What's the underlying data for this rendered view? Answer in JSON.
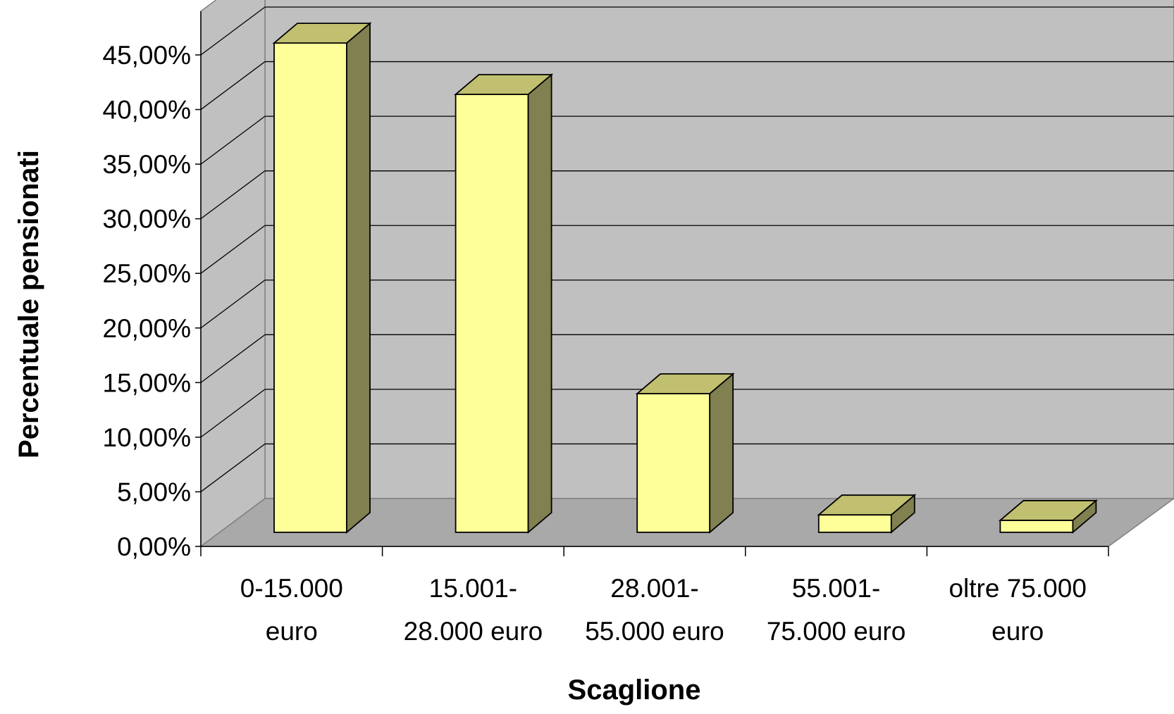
{
  "chart_data": {
    "type": "bar",
    "title": "",
    "xlabel": "Scaglione",
    "ylabel": "Percentuale pensionati",
    "categories": [
      [
        "0-15.000",
        "euro"
      ],
      [
        "15.001-",
        "28.000 euro"
      ],
      [
        "28.001-",
        "55.000 euro"
      ],
      [
        "55.001-",
        "75.000 euro"
      ],
      [
        "oltre 75.000",
        "euro"
      ]
    ],
    "values": [
      44.8,
      40.1,
      12.7,
      1.6,
      1.1
    ],
    "ylim": [
      0,
      45
    ],
    "yticks": [
      "0,00%",
      "5,00%",
      "10,00%",
      "15,00%",
      "20,00%",
      "25,00%",
      "30,00%",
      "35,00%",
      "40,00%",
      "45,00%"
    ],
    "grid": true,
    "legend": "none",
    "style": "3d-column"
  },
  "colors": {
    "wall": "#c0c0c0",
    "floor": "#a9a9a9",
    "bar_front": "#ffff99",
    "bar_top": "#c0c070",
    "bar_side": "#808050",
    "outline": "#000000",
    "grid": "#000000"
  }
}
